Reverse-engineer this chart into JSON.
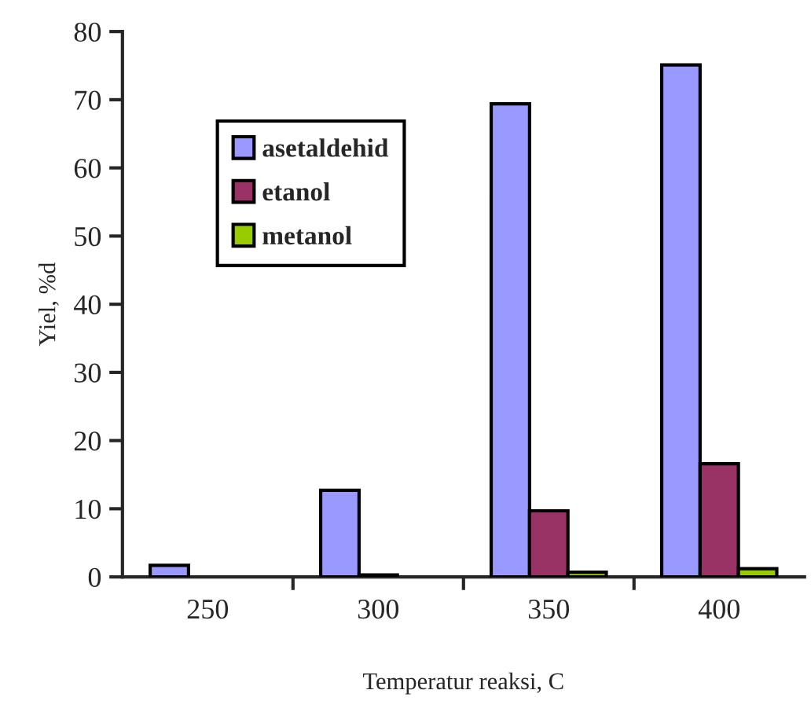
{
  "chart_data": {
    "type": "bar",
    "xlabel": "Temperatur reaksi, C",
    "ylabel": "Yiel, %d",
    "categories": [
      "250",
      "300",
      "350",
      "400"
    ],
    "series": [
      {
        "name": "asetaldehid",
        "color": "#9999ff",
        "values": [
          1.7,
          12.7,
          69.4,
          75.1
        ]
      },
      {
        "name": "etanol",
        "color": "#993366",
        "values": [
          null,
          0.3,
          9.7,
          16.6
        ]
      },
      {
        "name": "metanol",
        "color": "#99cc00",
        "values": [
          null,
          null,
          0.7,
          1.2
        ]
      }
    ],
    "ylim": [
      0,
      80
    ],
    "yticks": [
      0,
      10,
      20,
      30,
      40,
      50,
      60,
      70,
      80
    ],
    "grid": false,
    "legend": "top left"
  }
}
